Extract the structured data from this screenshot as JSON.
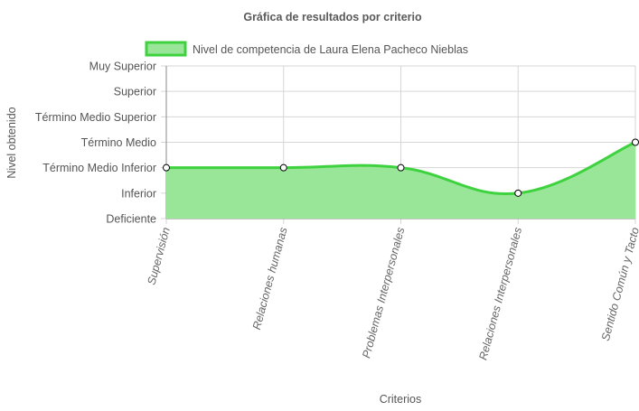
{
  "chart_data": {
    "type": "area",
    "title": "Gráfica de resultados por criterio",
    "xlabel": "Criterios",
    "ylabel": "Nivel obtenido",
    "y_levels": [
      "Deficiente",
      "Inferior",
      "Término Medio Inferior",
      "Término Medio",
      "Término Medio Superior",
      "Superior",
      "Muy Superior"
    ],
    "categories": [
      "Supervisión",
      "Relaciones humanas",
      "Problemas Interpersonales",
      "Relaciones Interpersonales",
      "Sentido Común y Tacto"
    ],
    "series": [
      {
        "name": "Nivel de competencia de Laura Elena Pacheco Nieblas",
        "values": [
          2,
          2,
          2,
          1,
          3
        ],
        "value_labels": [
          "Término Medio Inferior",
          "Término Medio Inferior",
          "Término Medio Inferior",
          "Inferior",
          "Término Medio"
        ]
      }
    ],
    "ylim": [
      0,
      6
    ],
    "grid": true,
    "legend_position": "top",
    "colors": {
      "line": "#3fd23f",
      "fill": "#99e699",
      "point_fill": "#ffffff",
      "point_stroke": "#000000"
    }
  }
}
